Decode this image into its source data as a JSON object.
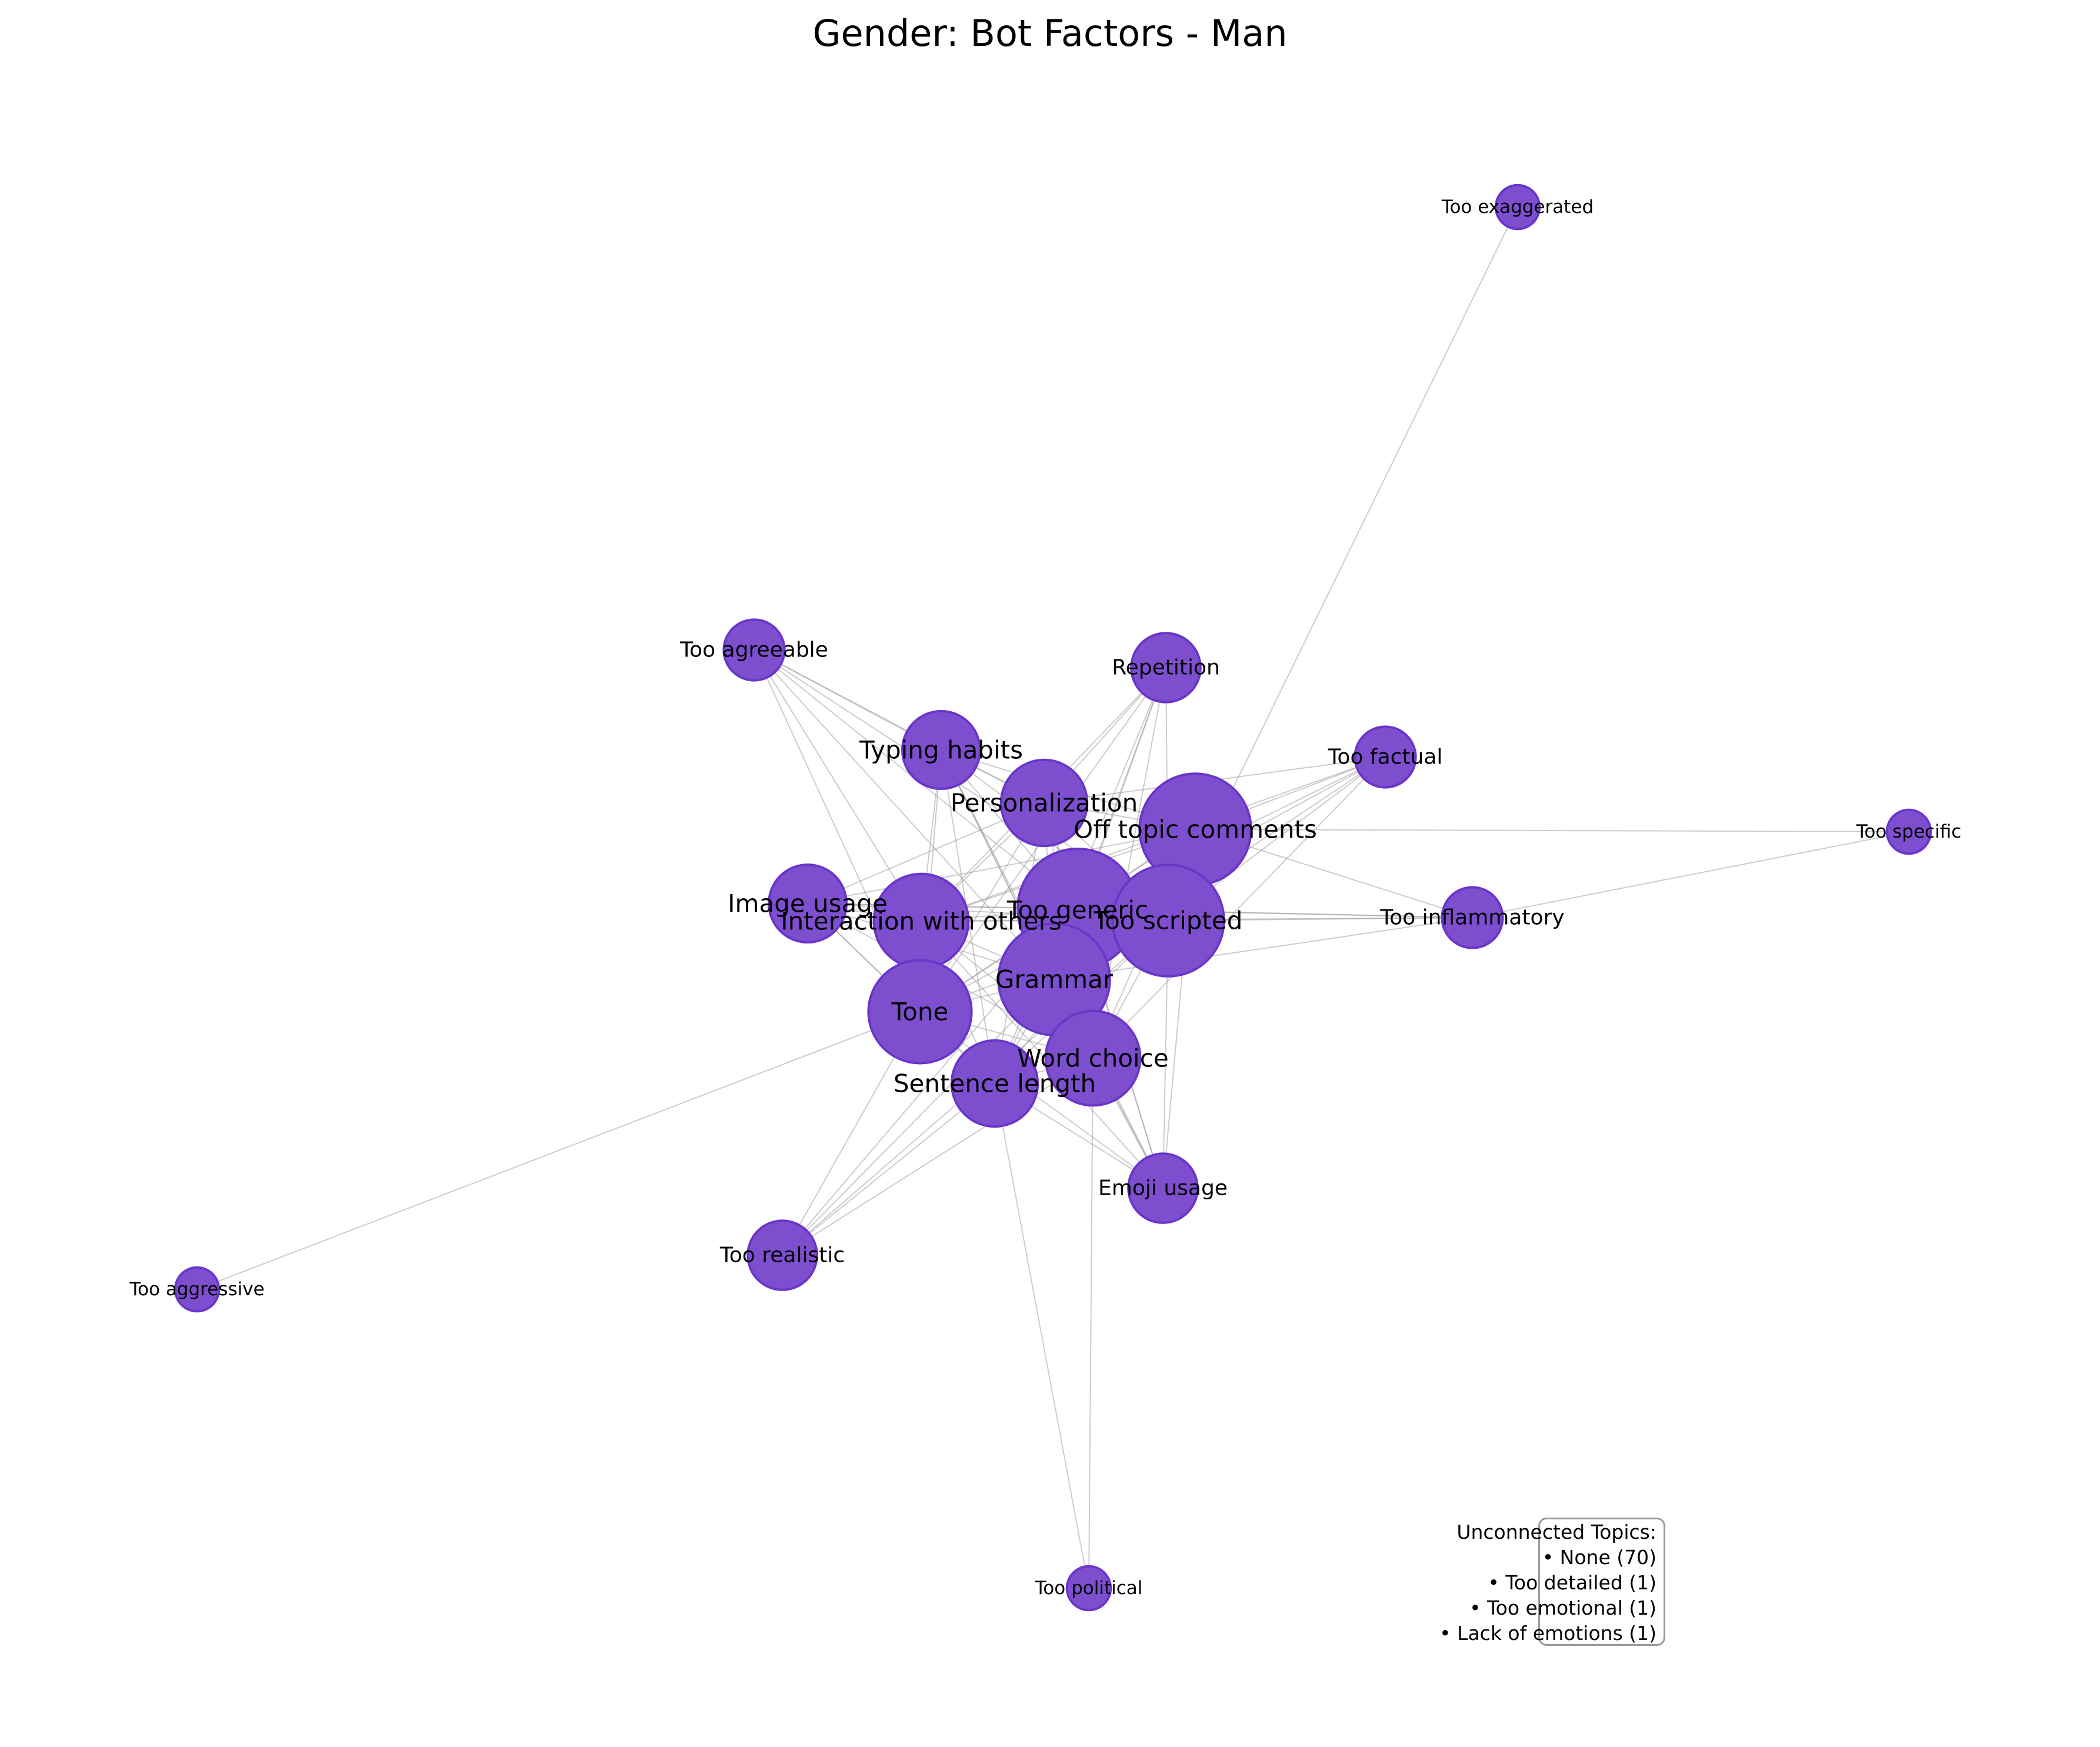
{
  "title": "Gender: Bot Factors - Man",
  "colors": {
    "node_fill": "#7d4fcf",
    "node_edge": "#6a35c9",
    "edge": "#9a9a9a"
  },
  "graph": {
    "nodes": [
      {
        "id": "too_exaggerated",
        "label": "Too exaggerated",
        "weight": 1
      },
      {
        "id": "too_agreeable",
        "label": "Too agreeable",
        "weight": 3
      },
      {
        "id": "repetition",
        "label": "Repetition",
        "weight": 4
      },
      {
        "id": "typing_habits",
        "label": "Typing habits",
        "weight": 5
      },
      {
        "id": "too_factual",
        "label": "Too factual",
        "weight": 3
      },
      {
        "id": "personalization",
        "label": "Personalization",
        "weight": 6
      },
      {
        "id": "off_topic_comments",
        "label": "Off topic comments",
        "weight": 9
      },
      {
        "id": "too_specific",
        "label": "Too specific",
        "weight": 1
      },
      {
        "id": "image_usage",
        "label": "Image usage",
        "weight": 5
      },
      {
        "id": "too_generic",
        "label": "Too generic",
        "weight": 10
      },
      {
        "id": "interaction_with_others",
        "label": "Interaction with others",
        "weight": 7
      },
      {
        "id": "too_scripted",
        "label": "Too scripted",
        "weight": 9
      },
      {
        "id": "too_inflammatory",
        "label": "Too inflammatory",
        "weight": 3
      },
      {
        "id": "grammar",
        "label": "Grammar",
        "weight": 9
      },
      {
        "id": "tone",
        "label": "Tone",
        "weight": 8
      },
      {
        "id": "word_choice",
        "label": "Word choice",
        "weight": 7
      },
      {
        "id": "sentence_length",
        "label": "Sentence length",
        "weight": 6
      },
      {
        "id": "emoji_usage",
        "label": "Emoji usage",
        "weight": 4
      },
      {
        "id": "too_realistic",
        "label": "Too realistic",
        "weight": 4
      },
      {
        "id": "too_aggressive",
        "label": "Too aggressive",
        "weight": 1
      },
      {
        "id": "too_political",
        "label": "Too political",
        "weight": 1
      }
    ],
    "edges": [
      [
        "too_exaggerated",
        "too_scripted"
      ],
      [
        "too_aggressive",
        "tone"
      ],
      [
        "too_specific",
        "off_topic_comments"
      ],
      [
        "too_specific",
        "too_inflammatory"
      ],
      [
        "too_political",
        "sentence_length"
      ],
      [
        "too_political",
        "word_choice"
      ],
      [
        "too_agreeable",
        "typing_habits"
      ],
      [
        "too_agreeable",
        "personalization"
      ],
      [
        "too_agreeable",
        "too_generic"
      ],
      [
        "too_agreeable",
        "interaction_with_others"
      ],
      [
        "too_agreeable",
        "tone"
      ],
      [
        "too_agreeable",
        "too_scripted"
      ],
      [
        "too_agreeable",
        "grammar"
      ],
      [
        "repetition",
        "personalization"
      ],
      [
        "repetition",
        "too_generic"
      ],
      [
        "repetition",
        "too_scripted"
      ],
      [
        "repetition",
        "grammar"
      ],
      [
        "repetition",
        "word_choice"
      ],
      [
        "repetition",
        "tone"
      ],
      [
        "repetition",
        "interaction_with_others"
      ],
      [
        "repetition",
        "sentence_length"
      ],
      [
        "typing_habits",
        "personalization"
      ],
      [
        "typing_habits",
        "off_topic_comments"
      ],
      [
        "typing_habits",
        "too_generic"
      ],
      [
        "typing_habits",
        "interaction_with_others"
      ],
      [
        "typing_habits",
        "grammar"
      ],
      [
        "typing_habits",
        "tone"
      ],
      [
        "typing_habits",
        "too_scripted"
      ],
      [
        "typing_habits",
        "word_choice"
      ],
      [
        "typing_habits",
        "sentence_length"
      ],
      [
        "typing_habits",
        "emoji_usage"
      ],
      [
        "too_factual",
        "off_topic_comments"
      ],
      [
        "too_factual",
        "too_generic"
      ],
      [
        "too_factual",
        "too_scripted"
      ],
      [
        "too_factual",
        "personalization"
      ],
      [
        "too_factual",
        "grammar"
      ],
      [
        "too_factual",
        "word_choice"
      ],
      [
        "too_factual",
        "tone"
      ],
      [
        "too_factual",
        "interaction_with_others"
      ],
      [
        "personalization",
        "off_topic_comments"
      ],
      [
        "personalization",
        "too_generic"
      ],
      [
        "personalization",
        "interaction_with_others"
      ],
      [
        "personalization",
        "too_scripted"
      ],
      [
        "personalization",
        "grammar"
      ],
      [
        "personalization",
        "tone"
      ],
      [
        "personalization",
        "word_choice"
      ],
      [
        "personalization",
        "sentence_length"
      ],
      [
        "personalization",
        "image_usage"
      ],
      [
        "personalization",
        "emoji_usage"
      ],
      [
        "off_topic_comments",
        "too_generic"
      ],
      [
        "off_topic_comments",
        "too_scripted"
      ],
      [
        "off_topic_comments",
        "interaction_with_others"
      ],
      [
        "off_topic_comments",
        "grammar"
      ],
      [
        "off_topic_comments",
        "tone"
      ],
      [
        "off_topic_comments",
        "word_choice"
      ],
      [
        "off_topic_comments",
        "sentence_length"
      ],
      [
        "off_topic_comments",
        "too_inflammatory"
      ],
      [
        "off_topic_comments",
        "image_usage"
      ],
      [
        "off_topic_comments",
        "emoji_usage"
      ],
      [
        "image_usage",
        "interaction_with_others"
      ],
      [
        "image_usage",
        "too_generic"
      ],
      [
        "image_usage",
        "too_scripted"
      ],
      [
        "image_usage",
        "grammar"
      ],
      [
        "image_usage",
        "tone"
      ],
      [
        "image_usage",
        "word_choice"
      ],
      [
        "image_usage",
        "sentence_length"
      ],
      [
        "image_usage",
        "too_inflammatory"
      ],
      [
        "too_generic",
        "interaction_with_others"
      ],
      [
        "too_generic",
        "too_scripted"
      ],
      [
        "too_generic",
        "grammar"
      ],
      [
        "too_generic",
        "tone"
      ],
      [
        "too_generic",
        "word_choice"
      ],
      [
        "too_generic",
        "sentence_length"
      ],
      [
        "too_generic",
        "emoji_usage"
      ],
      [
        "too_generic",
        "too_realistic"
      ],
      [
        "too_generic",
        "too_inflammatory"
      ],
      [
        "interaction_with_others",
        "too_scripted"
      ],
      [
        "interaction_with_others",
        "grammar"
      ],
      [
        "interaction_with_others",
        "tone"
      ],
      [
        "interaction_with_others",
        "word_choice"
      ],
      [
        "interaction_with_others",
        "sentence_length"
      ],
      [
        "interaction_with_others",
        "emoji_usage"
      ],
      [
        "interaction_with_others",
        "too_inflammatory"
      ],
      [
        "too_scripted",
        "grammar"
      ],
      [
        "too_scripted",
        "tone"
      ],
      [
        "too_scripted",
        "word_choice"
      ],
      [
        "too_scripted",
        "sentence_length"
      ],
      [
        "too_scripted",
        "emoji_usage"
      ],
      [
        "too_scripted",
        "too_realistic"
      ],
      [
        "too_scripted",
        "too_inflammatory"
      ],
      [
        "grammar",
        "tone"
      ],
      [
        "grammar",
        "word_choice"
      ],
      [
        "grammar",
        "sentence_length"
      ],
      [
        "grammar",
        "emoji_usage"
      ],
      [
        "grammar",
        "too_realistic"
      ],
      [
        "grammar",
        "too_inflammatory"
      ],
      [
        "tone",
        "word_choice"
      ],
      [
        "tone",
        "sentence_length"
      ],
      [
        "tone",
        "emoji_usage"
      ],
      [
        "tone",
        "too_realistic"
      ],
      [
        "word_choice",
        "sentence_length"
      ],
      [
        "word_choice",
        "emoji_usage"
      ],
      [
        "word_choice",
        "too_realistic"
      ],
      [
        "sentence_length",
        "emoji_usage"
      ],
      [
        "sentence_length",
        "too_realistic"
      ]
    ]
  },
  "legend": {
    "title": "Unconnected Topics:",
    "items": [
      "• None (70)",
      "• Too detailed (1)",
      "• Too emotional (1)",
      "• Lack of emotions (1)"
    ]
  }
}
